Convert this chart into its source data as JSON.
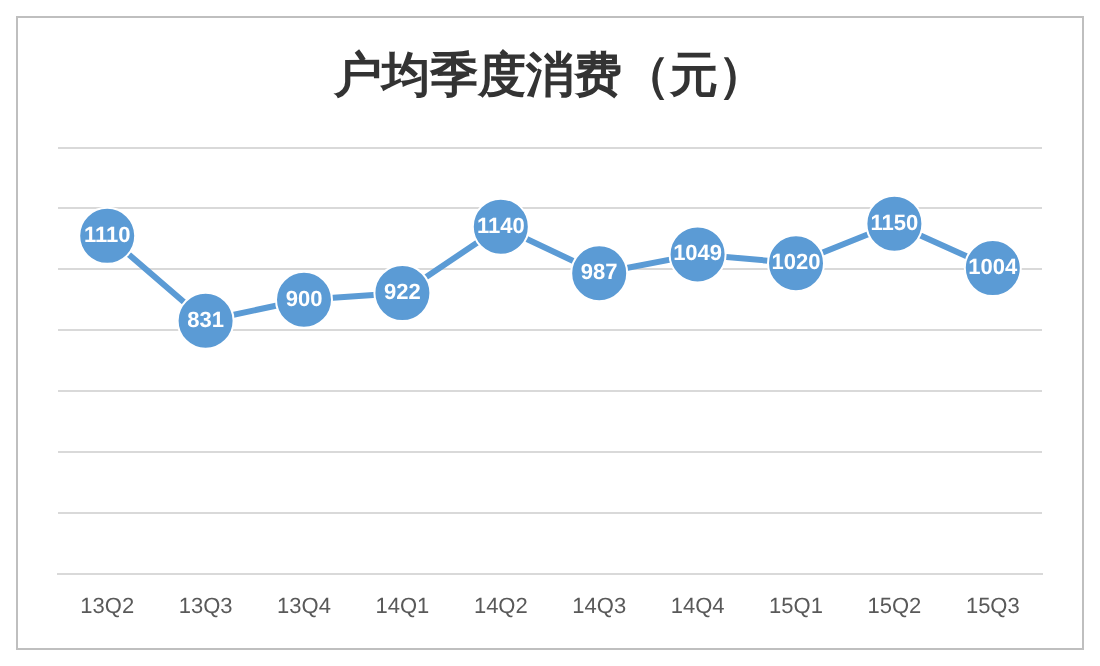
{
  "chart_data": {
    "type": "line",
    "title": "户均季度消费（元）",
    "categories": [
      "13Q2",
      "13Q3",
      "13Q4",
      "14Q1",
      "14Q2",
      "14Q3",
      "14Q4",
      "15Q1",
      "15Q2",
      "15Q3"
    ],
    "series": [
      {
        "color": "#5b9bd5",
        "values": [
          1110,
          831,
          900,
          922,
          1140,
          987,
          1049,
          1020,
          1150,
          1004
        ]
      }
    ],
    "ylim": [
      0,
      1400
    ],
    "yticks": [
      {
        "value": 0,
        "label": null
      },
      {
        "value": 200,
        "label": null
      },
      {
        "value": 400,
        "label": null
      },
      {
        "value": 600,
        "label": null
      },
      {
        "value": 800,
        "label": null
      },
      {
        "value": 1000,
        "label": null
      },
      {
        "value": 1200,
        "label": null
      },
      {
        "value": 1400,
        "label": null
      }
    ],
    "tick_labels": "x",
    "grid": "y",
    "marker": "circle",
    "line_style": "solid",
    "data_labels": true,
    "legend": false
  }
}
